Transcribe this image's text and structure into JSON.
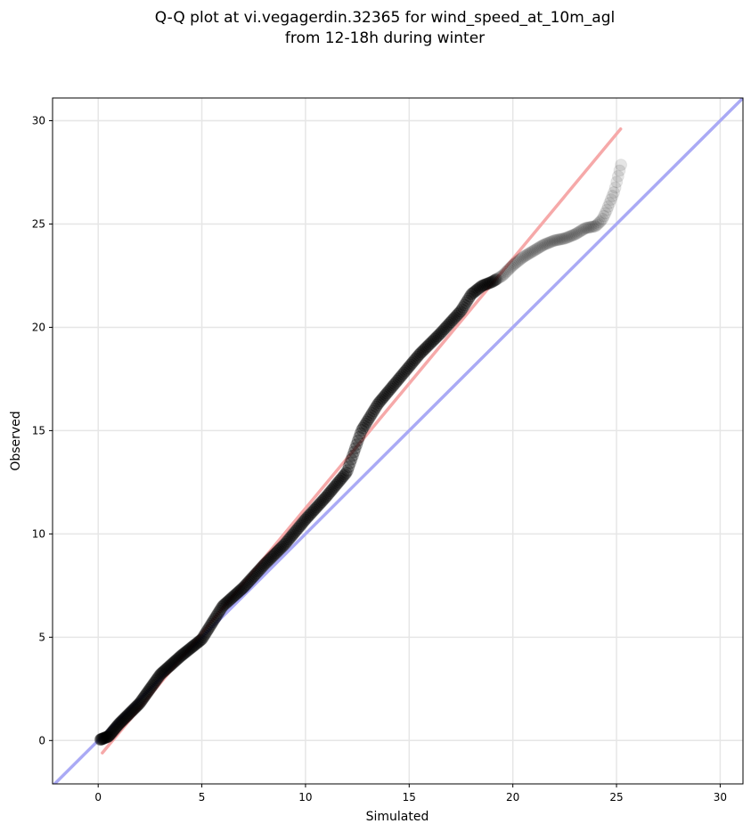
{
  "chart_data": {
    "type": "scatter",
    "title": [
      "Q-Q plot at vi.vegagerdin.32365 for wind_speed_at_10m_agl",
      "from 12-18h during winter"
    ],
    "xlabel": "Simulated",
    "ylabel": "Observed",
    "xlim": [
      -2.2,
      31.1
    ],
    "ylim": [
      -2.1,
      31.1
    ],
    "xticks": [
      0,
      5,
      10,
      15,
      20,
      25,
      30
    ],
    "yticks": [
      0,
      5,
      10,
      15,
      20,
      25,
      30
    ],
    "grid": true,
    "colors": {
      "points": "#000000",
      "identity_line": "#aaaaf5",
      "fit_line": "#f6a9a9",
      "grid": "#e6e6e6"
    },
    "reference_lines": [
      {
        "kind": "identity",
        "x": [
          -2.2,
          31.1
        ],
        "y": [
          -2.2,
          31.1
        ]
      },
      {
        "kind": "fit",
        "x": [
          0.2,
          25.2
        ],
        "y": [
          -0.6,
          29.6
        ]
      }
    ],
    "quantile_anchors": {
      "x": [
        0.0,
        0.5,
        1.0,
        2.0,
        3.0,
        4.0,
        5.0,
        6.0,
        7.0,
        8.0,
        9.0,
        10.0,
        11.0,
        12.0,
        12.7,
        13.5,
        14.5,
        15.5,
        16.5,
        17.5,
        18.0,
        18.5,
        19.0,
        19.5,
        20.0,
        20.5,
        21.0,
        21.5,
        22.0,
        22.5,
        23.0,
        23.5,
        24.0,
        24.3,
        24.5,
        24.9,
        25.1,
        25.25
      ],
      "y": [
        0.0,
        0.2,
        0.8,
        1.8,
        3.2,
        4.1,
        4.9,
        6.5,
        7.4,
        8.5,
        9.5,
        10.7,
        11.8,
        13.0,
        15.0,
        16.3,
        17.5,
        18.7,
        19.7,
        20.8,
        21.6,
        22.0,
        22.2,
        22.5,
        23.0,
        23.4,
        23.7,
        24.0,
        24.2,
        24.3,
        24.5,
        24.8,
        24.9,
        25.2,
        25.6,
        26.6,
        27.4,
        28.0
      ]
    },
    "n_points": 420,
    "marker_alpha": {
      "dense": 0.3,
      "sparse": 0.1
    }
  }
}
